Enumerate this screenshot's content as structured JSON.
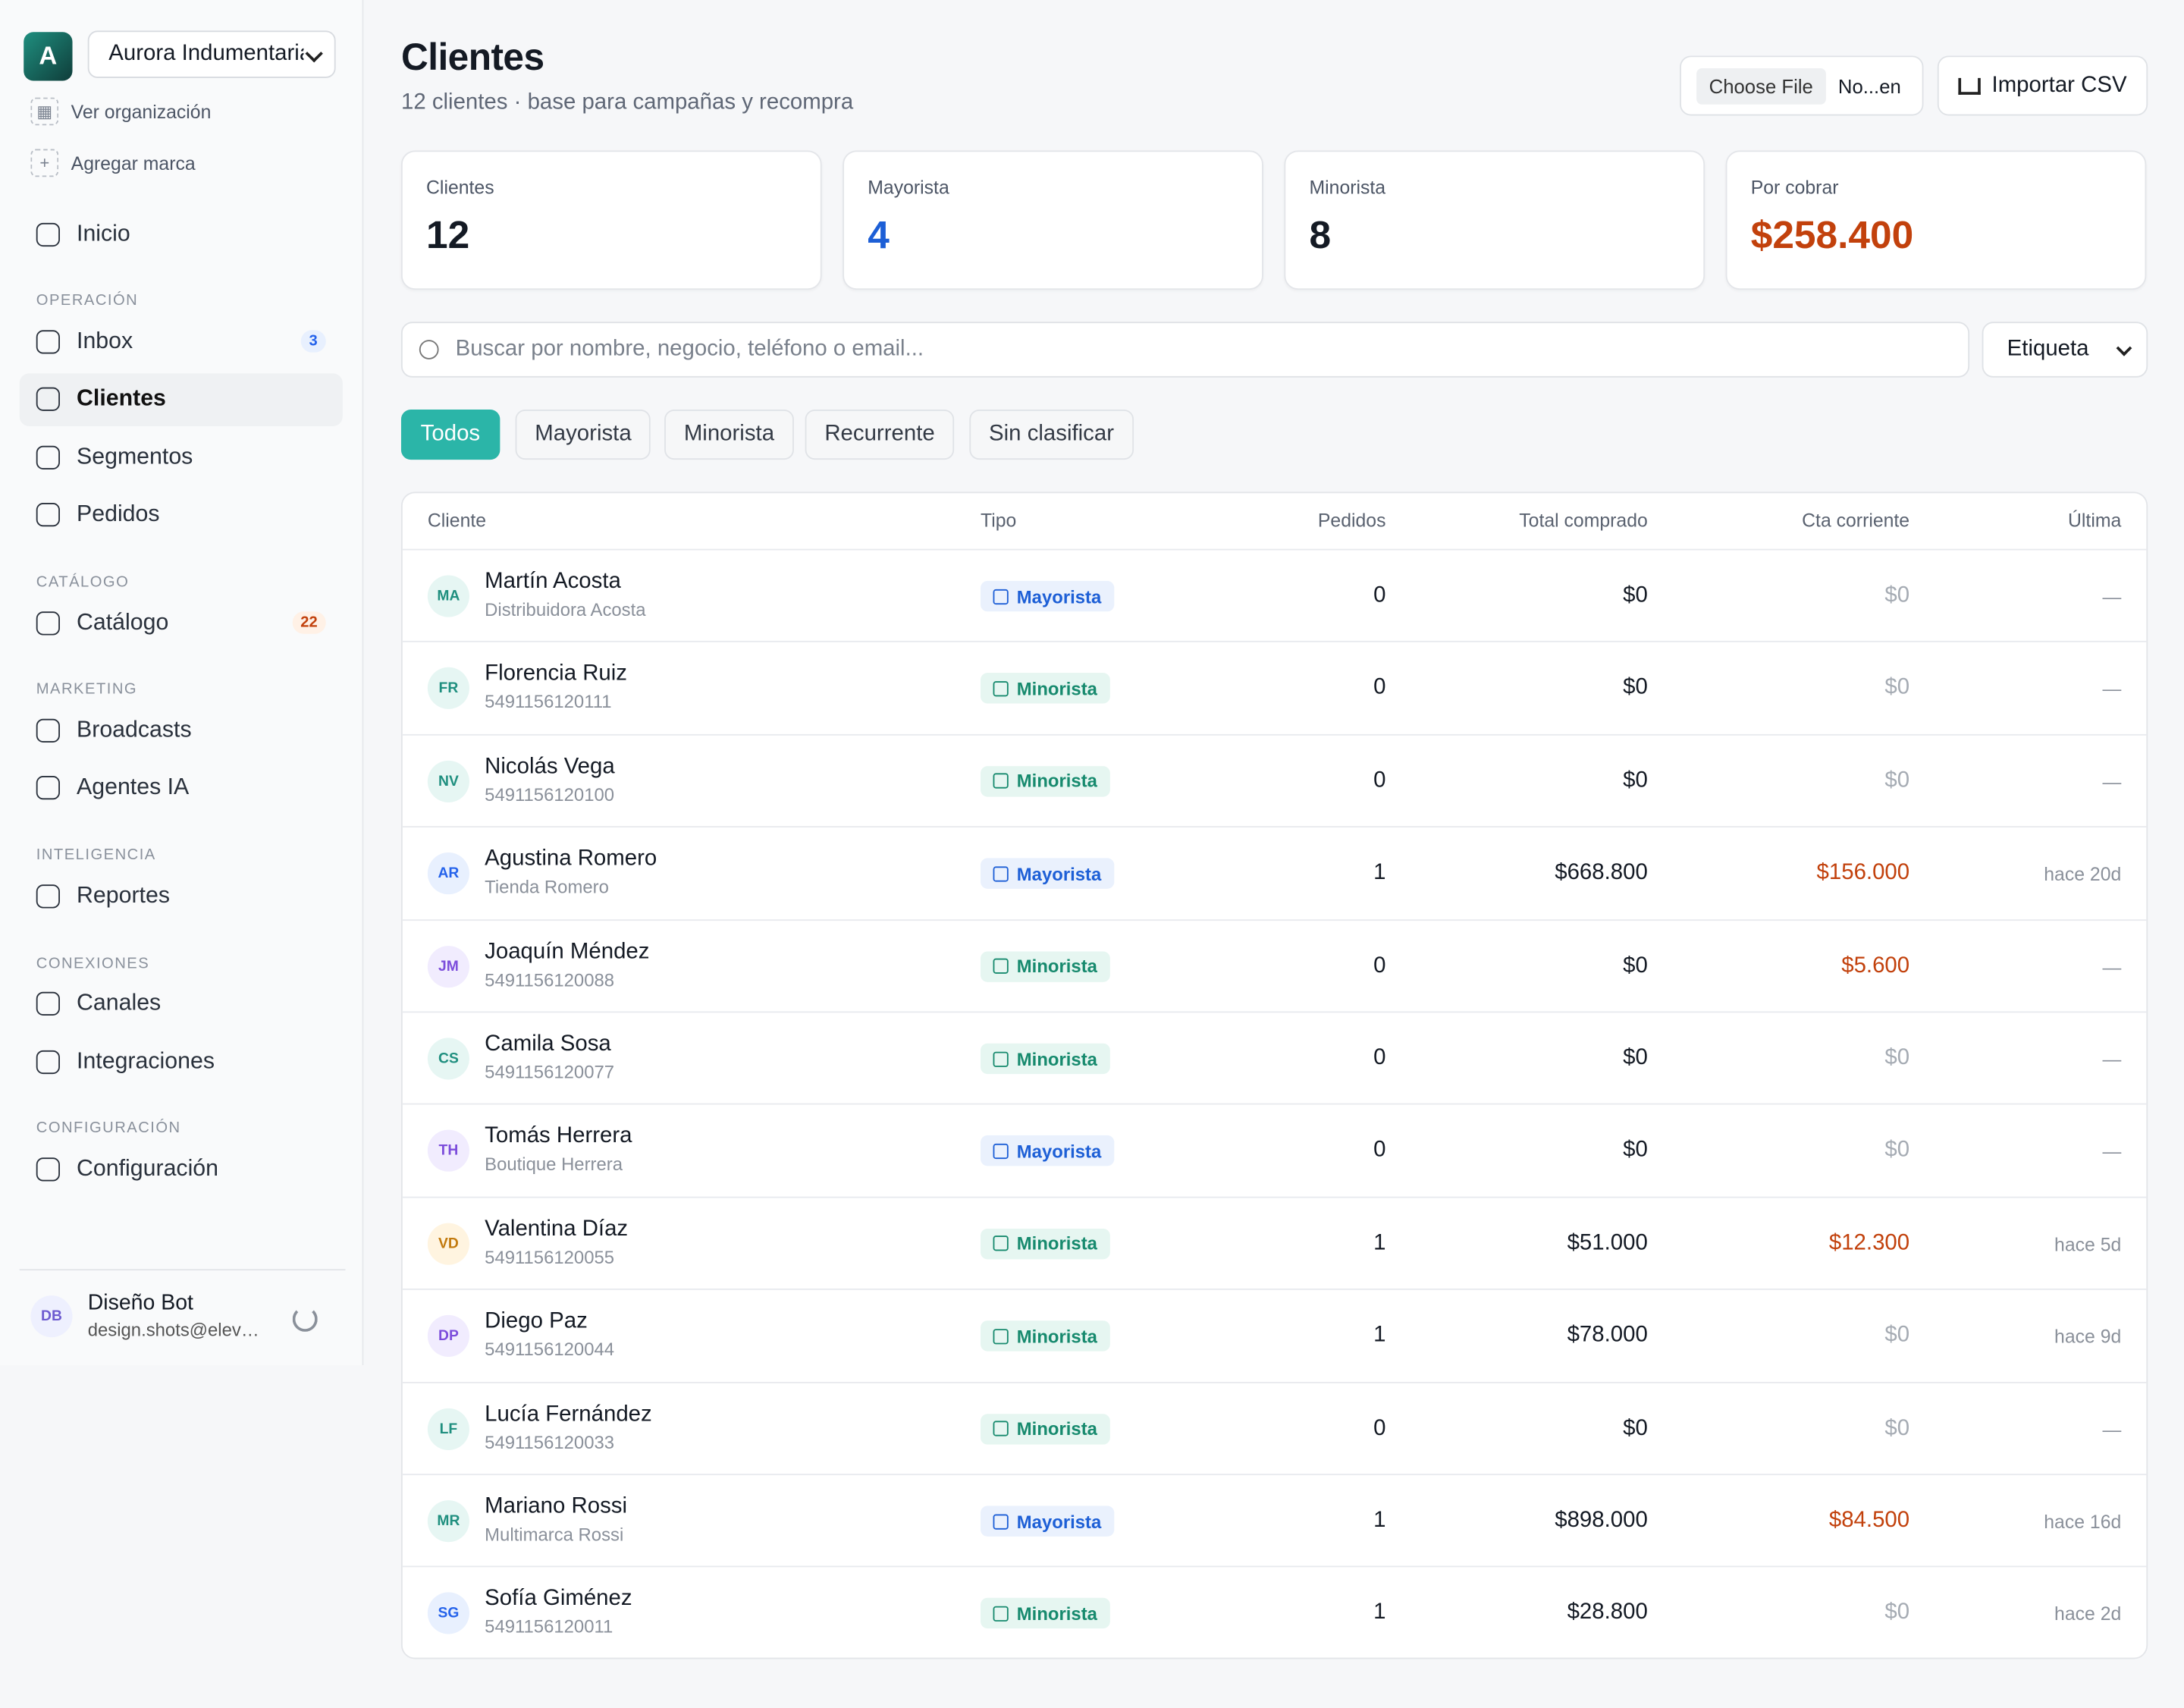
{
  "sidebar": {
    "org_avatar": "A",
    "org_select": "Aurora Indumentaria",
    "org_links": [
      "Ver organización",
      "Agregar marca"
    ],
    "sections": [
      {
        "heading": null,
        "items": [
          {
            "label": "Inicio",
            "badge": null
          }
        ]
      },
      {
        "heading": "OPERACIÓN",
        "items": [
          {
            "label": "Inbox",
            "badge": 3
          },
          {
            "label": "Clientes",
            "badge": null
          },
          {
            "label": "Segmentos",
            "badge": null
          },
          {
            "label": "Pedidos",
            "badge": null
          }
        ]
      },
      {
        "heading": "CATÁLOGO",
        "items": [
          {
            "label": "Catálogo",
            "badge": 22
          }
        ]
      },
      {
        "heading": "MARKETING",
        "items": [
          {
            "label": "Broadcasts",
            "badge": null
          },
          {
            "label": "Agentes IA",
            "badge": null
          }
        ]
      },
      {
        "heading": "INTELIGENCIA",
        "items": [
          {
            "label": "Reportes",
            "badge": null
          }
        ]
      },
      {
        "heading": "CONEXIONES",
        "items": [
          {
            "label": "Canales",
            "badge": null
          },
          {
            "label": "Integraciones",
            "badge": null
          }
        ]
      },
      {
        "heading": "CONFIGURACIÓN",
        "items": [
          {
            "label": "Configuración",
            "badge": null
          }
        ]
      }
    ],
    "user": {
      "initials": "DB",
      "name": "Diseño Bot",
      "email": "design.shots@elev…"
    }
  },
  "header": {
    "title": "Clientes",
    "subtitle": "12 clientes · base para campañas y recompra",
    "file_button": "Choose File",
    "file_name": "No...en",
    "import_button": "Importar CSV"
  },
  "stats": [
    {
      "label": "Clientes",
      "value": "12"
    },
    {
      "label": "Mayorista",
      "value": "4"
    },
    {
      "label": "Minorista",
      "value": "8"
    },
    {
      "label": "Por cobrar",
      "value": "$258.400"
    }
  ],
  "search": {
    "placeholder": "Buscar por nombre, negocio, teléfono o email...",
    "tag_select": "Etiqueta"
  },
  "filters": [
    "Todos",
    "Mayorista",
    "Minorista",
    "Recurrente",
    "Sin clasificar"
  ],
  "table": {
    "columns": [
      "Cliente",
      "Tipo",
      "Pedidos",
      "Total comprado",
      "Cta corriente",
      "Última"
    ],
    "rows": [
      [
        "MA",
        "Martín Acosta",
        "Distribuidora Acosta",
        "Mayorista",
        "0",
        "$0",
        "$0",
        "—"
      ],
      [
        "FR",
        "Florencia Ruiz",
        "5491156120111",
        "Minorista",
        "0",
        "$0",
        "$0",
        "—"
      ],
      [
        "NV",
        "Nicolás Vega",
        "5491156120100",
        "Minorista",
        "0",
        "$0",
        "$0",
        "—"
      ],
      [
        "AR",
        "Agustina Romero",
        "Tienda Romero",
        "Mayorista",
        "1",
        "$668.800",
        "$156.000",
        "hace 20d"
      ],
      [
        "JM",
        "Joaquín Méndez",
        "5491156120088",
        "Minorista",
        "0",
        "$0",
        "$5.600",
        "—"
      ],
      [
        "CS",
        "Camila Sosa",
        "5491156120077",
        "Minorista",
        "0",
        "$0",
        "$0",
        "—"
      ],
      [
        "TH",
        "Tomás Herrera",
        "Boutique Herrera",
        "Mayorista",
        "0",
        "$0",
        "$0",
        "—"
      ],
      [
        "VD",
        "Valentina Díaz",
        "5491156120055",
        "Minorista",
        "1",
        "$51.000",
        "$12.300",
        "hace 5d"
      ],
      [
        "DP",
        "Diego Paz",
        "5491156120044",
        "Minorista",
        "1",
        "$78.000",
        "$0",
        "hace 9d"
      ],
      [
        "LF",
        "Lucía Fernández",
        "5491156120033",
        "Minorista",
        "0",
        "$0",
        "$0",
        "—"
      ],
      [
        "MR",
        "Mariano Rossi",
        "Multimarca Rossi",
        "Mayorista",
        "1",
        "$898.000",
        "$84.500",
        "hace 16d"
      ],
      [
        "SG",
        "Sofía Giménez",
        "5491156120011",
        "Minorista",
        "1",
        "$28.800",
        "$0",
        "hace 2d"
      ]
    ]
  }
}
